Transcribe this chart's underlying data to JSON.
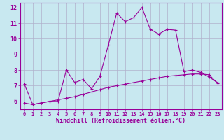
{
  "xlabel": "Windchill (Refroidissement éolien,°C)",
  "x": [
    0,
    1,
    2,
    3,
    4,
    5,
    6,
    7,
    8,
    9,
    10,
    11,
    12,
    13,
    14,
    15,
    16,
    17,
    18,
    19,
    20,
    21,
    22,
    23
  ],
  "line1": [
    7.1,
    5.8,
    5.9,
    6.0,
    6.0,
    8.0,
    7.2,
    7.4,
    6.8,
    7.6,
    9.6,
    11.65,
    11.1,
    11.35,
    12.0,
    10.6,
    10.3,
    10.6,
    10.55,
    7.9,
    8.0,
    7.85,
    7.55,
    7.2
  ],
  "line2": [
    5.9,
    5.8,
    5.9,
    6.0,
    6.1,
    6.2,
    6.3,
    6.45,
    6.6,
    6.75,
    6.9,
    7.0,
    7.1,
    7.2,
    7.3,
    7.4,
    7.5,
    7.6,
    7.65,
    7.7,
    7.75,
    7.75,
    7.7,
    7.15
  ],
  "line_color": "#990099",
  "bg_color": "#c8e8f0",
  "grid_color": "#b0b0cc",
  "ylim": [
    5.5,
    12.3
  ],
  "xlim": [
    -0.5,
    23.5
  ],
  "yticks": [
    6,
    7,
    8,
    9,
    10,
    11,
    12
  ],
  "xticks": [
    0,
    1,
    2,
    3,
    4,
    5,
    6,
    7,
    8,
    9,
    10,
    11,
    12,
    13,
    14,
    15,
    16,
    17,
    18,
    19,
    20,
    21,
    22,
    23
  ]
}
